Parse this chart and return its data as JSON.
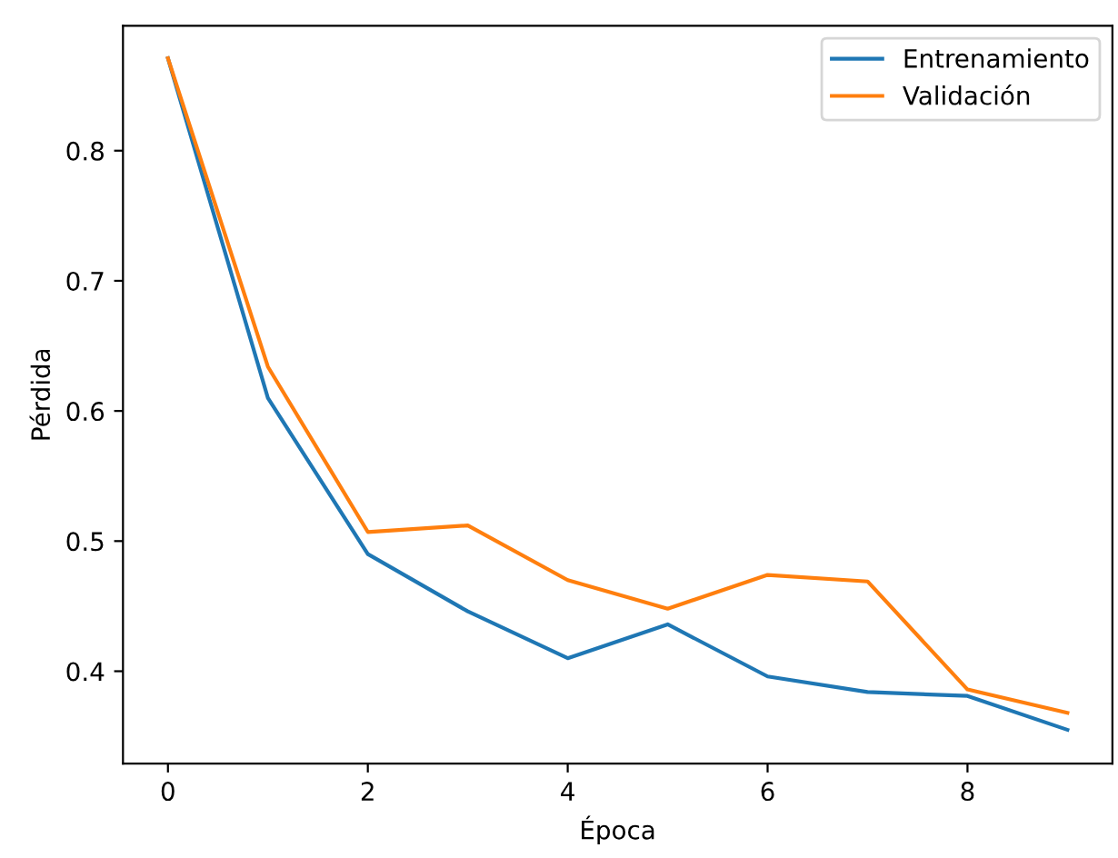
{
  "chart_data": {
    "type": "line",
    "xlabel": "Época",
    "ylabel": "Pérdida",
    "x": [
      0,
      1,
      2,
      3,
      4,
      5,
      6,
      7,
      8,
      9
    ],
    "series": [
      {
        "name": "Entrenamiento",
        "color": "#1f77b4",
        "values": [
          0.871,
          0.61,
          0.49,
          0.446,
          0.41,
          0.436,
          0.396,
          0.384,
          0.381,
          0.355
        ]
      },
      {
        "name": "Validación",
        "color": "#ff7f0e",
        "values": [
          0.871,
          0.634,
          0.507,
          0.512,
          0.47,
          0.448,
          0.474,
          0.469,
          0.386,
          0.368
        ]
      }
    ],
    "xlim": [
      -0.45,
      9.45
    ],
    "ylim": [
      0.329,
      0.896
    ],
    "xticks": [
      0,
      2,
      4,
      6,
      8
    ],
    "yticks": [
      0.4,
      0.5,
      0.6,
      0.7,
      0.8
    ],
    "legend": "top right",
    "grid": false
  }
}
